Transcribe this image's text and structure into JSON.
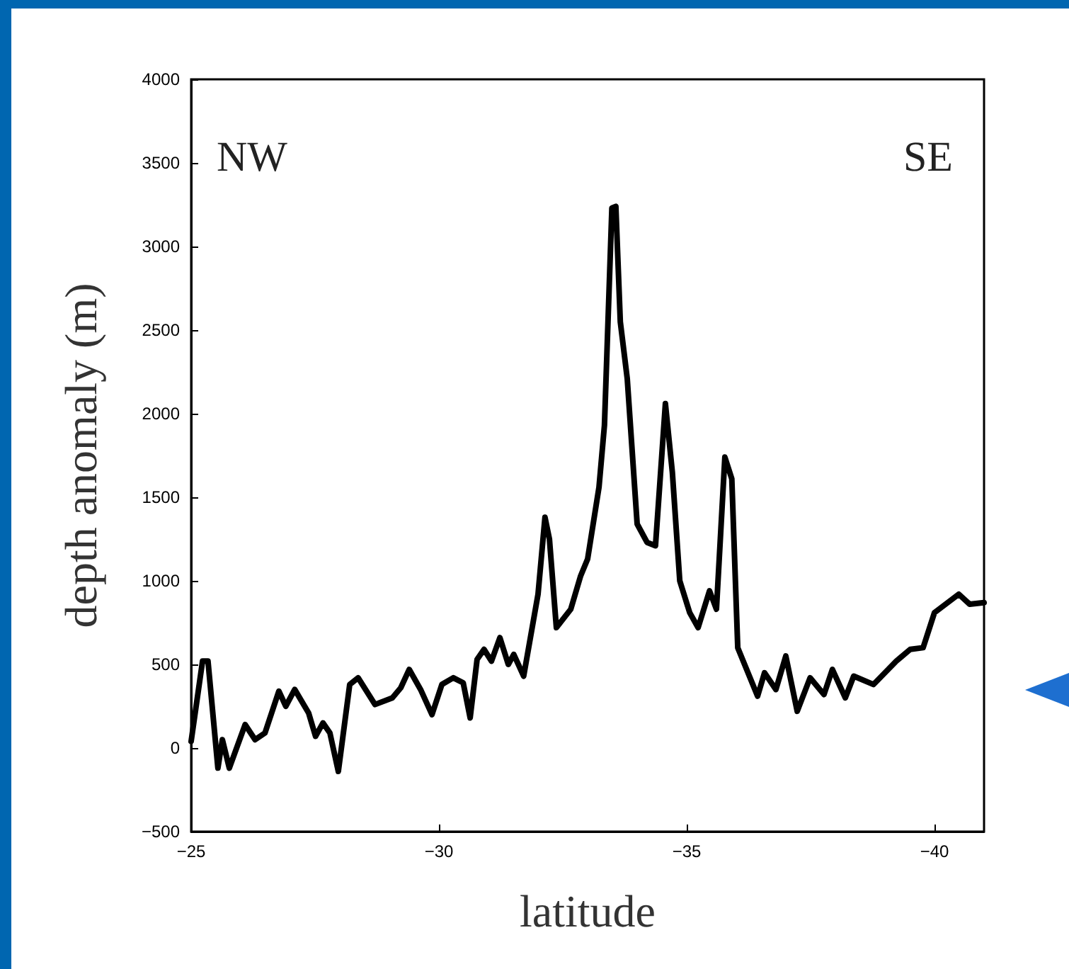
{
  "chart_data": {
    "type": "line",
    "xlabel": "latitude",
    "ylabel": "depth anomaly (m)",
    "annotations": [
      "NW",
      "SE"
    ],
    "xlim": [
      -25,
      -41
    ],
    "xticks": [
      {
        "value": -25,
        "label": "−25"
      },
      {
        "value": -30,
        "label": "−30"
      },
      {
        "value": -35,
        "label": "−35"
      },
      {
        "value": -40,
        "label": "−40"
      }
    ],
    "ylim": [
      -500,
      4000
    ],
    "yticks": [
      {
        "value": -500,
        "label": "−500"
      },
      0,
      500,
      1000,
      1500,
      2000,
      2500,
      3000,
      3500,
      4000
    ],
    "grid": false,
    "marker": "none",
    "line_style": "solid",
    "series": [
      {
        "color": "#000000",
        "x": [
          -25,
          -25.23,
          -25.34,
          -25.54,
          -25.63,
          -25.77,
          -26.09,
          -26.29,
          -26.49,
          -26.77,
          -26.91,
          -27.09,
          -27.37,
          -27.51,
          -27.66,
          -27.8,
          -27.97,
          -28.2,
          -28.37,
          -28.71,
          -29.06,
          -29.23,
          -29.4,
          -29.63,
          -29.86,
          -30.06,
          -30.29,
          -30.49,
          -30.63,
          -30.77,
          -30.91,
          -31.06,
          -31.23,
          -31.4,
          -31.51,
          -31.71,
          -32,
          -32.14,
          -32.23,
          -32.37,
          -32.66,
          -32.86,
          -33,
          -33.23,
          -33.34,
          -33.49,
          -33.57,
          -33.66,
          -33.8,
          -34,
          -34.2,
          -34.37,
          -34.57,
          -34.71,
          -34.86,
          -35.06,
          -35.23,
          -35.46,
          -35.6,
          -35.77,
          -35.91,
          -36.03,
          -36.43,
          -36.57,
          -36.8,
          -37,
          -37.23,
          -37.49,
          -37.77,
          -37.94,
          -38.2,
          -38.37,
          -38.77,
          -39.23,
          -39.51,
          -39.77,
          -40,
          -40.49,
          -40.71,
          -41
        ],
        "values": [
          40,
          520,
          520,
          -120,
          50,
          -120,
          140,
          50,
          90,
          340,
          250,
          350,
          210,
          70,
          150,
          90,
          -140,
          380,
          420,
          260,
          300,
          360,
          470,
          350,
          200,
          380,
          420,
          390,
          180,
          530,
          590,
          520,
          660,
          500,
          560,
          430,
          920,
          1380,
          1250,
          720,
          830,
          1030,
          1130,
          1560,
          1930,
          3230,
          3240,
          2550,
          2210,
          1340,
          1230,
          1210,
          2060,
          1650,
          1000,
          810,
          720,
          940,
          830,
          1740,
          1610,
          600,
          310,
          450,
          350,
          550,
          220,
          420,
          320,
          470,
          300,
          430,
          380,
          520,
          590,
          600,
          810,
          920,
          860,
          870
        ]
      }
    ]
  }
}
